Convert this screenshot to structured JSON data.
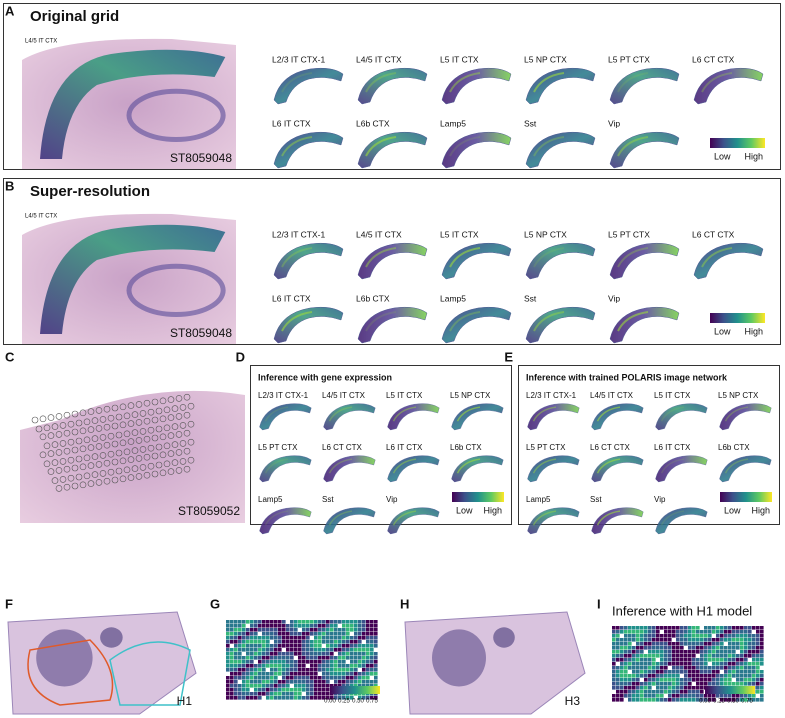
{
  "panels": {
    "A": {
      "letter": "A",
      "title": "Original grid",
      "tissue_label": "L4/5 IT CTX",
      "section_label": "ST8059048",
      "cell_types": [
        "L2/3 IT CTX-1",
        "L4/5 IT CTX",
        "L5 IT CTX",
        "L5 NP CTX",
        "L5 PT CTX",
        "L6 CT CTX",
        "L6 IT CTX",
        "L6b CTX",
        "Lamp5",
        "Sst",
        "Vip"
      ],
      "colorbar": {
        "low": "Low",
        "high": "High"
      }
    },
    "B": {
      "letter": "B",
      "title": "Super-resolution",
      "tissue_label": "L4/5 IT CTX",
      "section_label": "ST8059048",
      "cell_types": [
        "L2/3 IT CTX-1",
        "L4/5 IT CTX",
        "L5 IT CTX",
        "L5 NP CTX",
        "L5 PT CTX",
        "L6 CT CTX",
        "L6 IT CTX",
        "L6b CTX",
        "Lamp5",
        "Sst",
        "Vip"
      ],
      "colorbar": {
        "low": "Low",
        "high": "High"
      }
    },
    "C": {
      "letter": "C",
      "section_label": "ST8059052"
    },
    "D": {
      "letter": "D",
      "title": "Inference with gene expression",
      "cell_types": [
        "L2/3 IT CTX-1",
        "L4/5 IT CTX",
        "L5 IT CTX",
        "L5 NP CTX",
        "L5 PT CTX",
        "L6 CT CTX",
        "L6 IT CTX",
        "L6b CTX",
        "Lamp5",
        "Sst",
        "Vip"
      ],
      "colorbar": {
        "low": "Low",
        "high": "High"
      }
    },
    "E": {
      "letter": "E",
      "title": "Inference with trained POLARIS image network",
      "cell_types": [
        "L2/3 IT CTX-1",
        "L4/5 IT CTX",
        "L5 IT CTX",
        "L5 NP CTX",
        "L5 PT CTX",
        "L6 CT CTX",
        "L6 IT CTX",
        "L6b CTX",
        "Lamp5",
        "Sst",
        "Vip"
      ],
      "colorbar": {
        "low": "Low",
        "high": "High"
      }
    },
    "F": {
      "letter": "F",
      "section_label": "H1"
    },
    "G": {
      "letter": "G",
      "colorbar_ticks": [
        "0.00",
        "0.25",
        "0.50",
        "0.75"
      ]
    },
    "H": {
      "letter": "H",
      "section_label": "H3"
    },
    "I": {
      "letter": "I",
      "title": "Inference with H1 model",
      "colorbar_ticks": [
        "0.00",
        "0.25",
        "0.50",
        "0.75"
      ]
    }
  }
}
